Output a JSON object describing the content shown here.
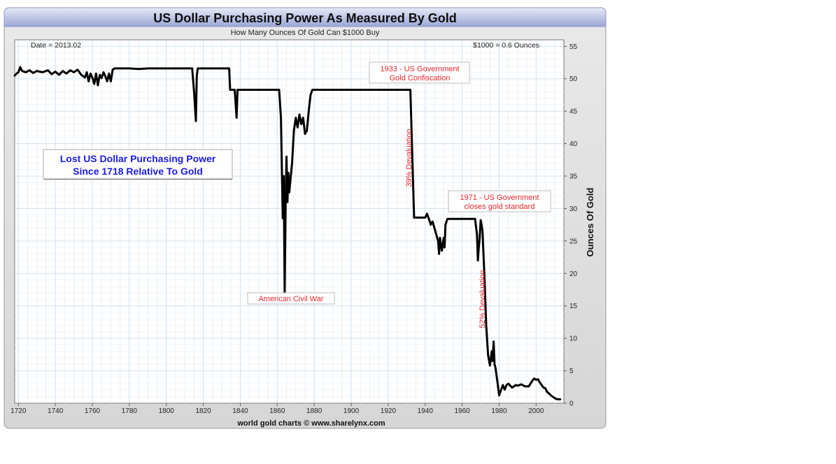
{
  "chart_data": {
    "type": "line",
    "title": "US Dollar Purchasing Power As Measured By Gold",
    "subtitle": "How Many Ounces Of Gold Can $1000 Buy",
    "date_label": "Date = 2013.02",
    "value_label": "$1000 = 0.6 Ounces",
    "ylabel": "Ounces Of Gold",
    "credit": "world gold charts © www.sharelynx.com",
    "xlim": [
      1718,
      2015
    ],
    "ylim": [
      0,
      56
    ],
    "x_ticks": [
      1720,
      1740,
      1760,
      1780,
      1800,
      1820,
      1840,
      1860,
      1880,
      1900,
      1920,
      1940,
      1960,
      1980,
      2000
    ],
    "y_ticks": [
      0,
      5,
      10,
      15,
      20,
      25,
      30,
      35,
      40,
      45,
      50,
      55
    ],
    "grid": true,
    "line_color": "#000000",
    "annotation_color": "#e8262a",
    "headline_color": "#1a1ae6",
    "headline_line1": "Lost US Dollar Purchasing Power",
    "headline_line2": "Since 1718 Relative To Gold",
    "annotations": {
      "confiscation_line1": "1933 - US Government",
      "confiscation_line2": "Gold Confiscation",
      "civil_war": "American Civil War",
      "standard_line1": "1971 - US Government",
      "standard_line2": "closes gold standard",
      "devaluation_39": "39% Devaluation",
      "devaluation_52": "52% Devaluation"
    },
    "series": [
      {
        "points": [
          [
            1718,
            50.5
          ],
          [
            1719,
            50.8
          ],
          [
            1720,
            51.0
          ],
          [
            1721,
            51.8
          ],
          [
            1722,
            51.2
          ],
          [
            1724,
            51.0
          ],
          [
            1726,
            51.3
          ],
          [
            1728,
            50.9
          ],
          [
            1730,
            51.2
          ],
          [
            1733,
            51.0
          ],
          [
            1736,
            51.3
          ],
          [
            1738,
            50.7
          ],
          [
            1740,
            51.1
          ],
          [
            1742,
            50.6
          ],
          [
            1744,
            51.2
          ],
          [
            1746,
            50.8
          ],
          [
            1748,
            51.3
          ],
          [
            1750,
            51.0
          ],
          [
            1752,
            51.4
          ],
          [
            1754,
            50.6
          ],
          [
            1756,
            50.2
          ],
          [
            1757,
            51.0
          ],
          [
            1758,
            49.6
          ],
          [
            1759,
            50.8
          ],
          [
            1760,
            50.2
          ],
          [
            1761,
            49.2
          ],
          [
            1762,
            50.8
          ],
          [
            1763,
            49.0
          ],
          [
            1764,
            50.6
          ],
          [
            1765,
            50.1
          ],
          [
            1766,
            51.0
          ],
          [
            1767,
            50.4
          ],
          [
            1768,
            49.6
          ],
          [
            1769,
            50.8
          ],
          [
            1770,
            49.6
          ],
          [
            1771,
            51.4
          ],
          [
            1772,
            51.6
          ],
          [
            1780,
            51.6
          ],
          [
            1785,
            51.5
          ],
          [
            1790,
            51.6
          ],
          [
            1800,
            51.6
          ],
          [
            1810,
            51.6
          ],
          [
            1814,
            51.6
          ],
          [
            1815,
            48.0
          ],
          [
            1816,
            43.5
          ],
          [
            1816.5,
            50.5
          ],
          [
            1817,
            51.6
          ],
          [
            1834,
            51.6
          ],
          [
            1834.5,
            48.3
          ],
          [
            1837,
            48.3
          ],
          [
            1838,
            44.0
          ],
          [
            1838.5,
            48.3
          ],
          [
            1861,
            48.3
          ],
          [
            1862,
            44.0
          ],
          [
            1863,
            28.5
          ],
          [
            1863.5,
            35.0
          ],
          [
            1864,
            17.0
          ],
          [
            1864.5,
            30.0
          ],
          [
            1865,
            38.0
          ],
          [
            1865.5,
            31.0
          ],
          [
            1866,
            35.5
          ],
          [
            1866.5,
            32.5
          ],
          [
            1867,
            34.0
          ],
          [
            1868,
            37.0
          ],
          [
            1869,
            42.0
          ],
          [
            1870,
            44.0
          ],
          [
            1871,
            42.5
          ],
          [
            1872,
            44.5
          ],
          [
            1873,
            43.0
          ],
          [
            1874,
            44.0
          ],
          [
            1875,
            41.5
          ],
          [
            1876,
            42.0
          ],
          [
            1877,
            45.0
          ],
          [
            1878,
            47.5
          ],
          [
            1879,
            48.3
          ],
          [
            1900,
            48.3
          ],
          [
            1920,
            48.3
          ],
          [
            1932,
            48.3
          ],
          [
            1934,
            28.6
          ],
          [
            1939,
            28.6
          ],
          [
            1940,
            28.6
          ],
          [
            1941,
            29.2
          ],
          [
            1942,
            28.4
          ],
          [
            1943,
            27.5
          ],
          [
            1944,
            28.0
          ],
          [
            1945,
            27.0
          ],
          [
            1946,
            26.0
          ],
          [
            1947,
            25.0
          ],
          [
            1947.5,
            23.0
          ],
          [
            1948,
            25.5
          ],
          [
            1948.5,
            24.5
          ],
          [
            1949,
            23.5
          ],
          [
            1950,
            25.5
          ],
          [
            1950.5,
            24.0
          ],
          [
            1951,
            27.5
          ],
          [
            1952,
            28.4
          ],
          [
            1955,
            28.4
          ],
          [
            1960,
            28.4
          ],
          [
            1964,
            28.4
          ],
          [
            1967,
            28.4
          ],
          [
            1968,
            26.0
          ],
          [
            1968.5,
            22.0
          ],
          [
            1969,
            24.0
          ],
          [
            1969.5,
            25.5
          ],
          [
            1970,
            28.2
          ],
          [
            1970.5,
            27.5
          ],
          [
            1971,
            26.5
          ],
          [
            1972,
            20.0
          ],
          [
            1973,
            12.0
          ],
          [
            1974,
            7.5
          ],
          [
            1975,
            5.8
          ],
          [
            1976,
            8.0
          ],
          [
            1976.5,
            6.5
          ],
          [
            1977,
            9.5
          ],
          [
            1977.5,
            6.0
          ],
          [
            1978,
            5.5
          ],
          [
            1979,
            3.5
          ],
          [
            1980,
            1.2
          ],
          [
            1981,
            2.0
          ],
          [
            1982,
            2.8
          ],
          [
            1983,
            2.1
          ],
          [
            1984,
            2.8
          ],
          [
            1985,
            3.0
          ],
          [
            1986,
            2.7
          ],
          [
            1987,
            2.4
          ],
          [
            1988,
            2.6
          ],
          [
            1989,
            2.8
          ],
          [
            1990,
            2.7
          ],
          [
            1992,
            2.9
          ],
          [
            1994,
            2.6
          ],
          [
            1996,
            2.6
          ],
          [
            1998,
            3.5
          ],
          [
            1999,
            3.8
          ],
          [
            2000,
            3.6
          ],
          [
            2001,
            3.7
          ],
          [
            2002,
            3.2
          ],
          [
            2003,
            2.8
          ],
          [
            2004,
            2.4
          ],
          [
            2005,
            2.3
          ],
          [
            2006,
            1.7
          ],
          [
            2007,
            1.5
          ],
          [
            2008,
            1.2
          ],
          [
            2009,
            1.0
          ],
          [
            2010,
            0.8
          ],
          [
            2011,
            0.65
          ],
          [
            2012,
            0.6
          ],
          [
            2013,
            0.6
          ]
        ]
      }
    ]
  }
}
